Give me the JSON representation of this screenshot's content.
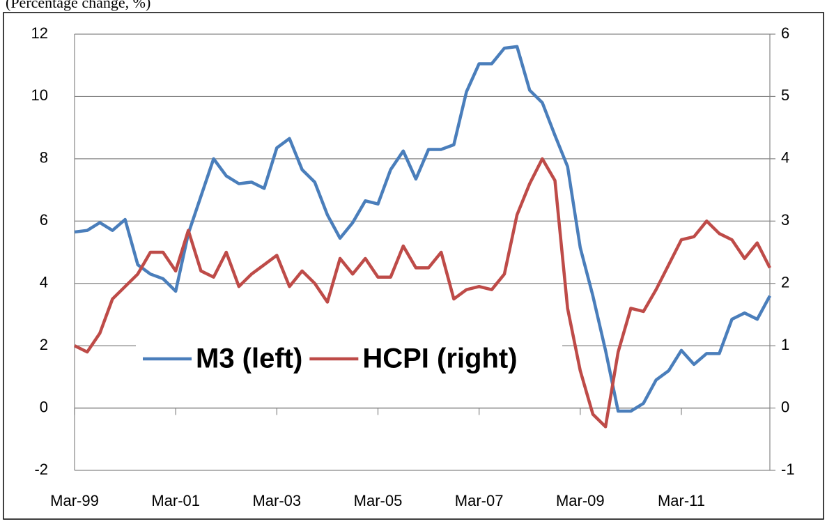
{
  "chart_data": {
    "type": "line",
    "title": "(Percentage change, %)",
    "categories": [
      "Mar-99",
      null,
      null,
      null,
      null,
      null,
      null,
      null,
      "Mar-01",
      null,
      null,
      null,
      null,
      null,
      null,
      null,
      "Mar-03",
      null,
      null,
      null,
      null,
      null,
      null,
      null,
      "Mar-05",
      null,
      null,
      null,
      null,
      null,
      null,
      null,
      "Mar-07",
      null,
      null,
      null,
      null,
      null,
      null,
      null,
      "Mar-09",
      null,
      null,
      null,
      null,
      null,
      null,
      null,
      "Mar-11",
      null,
      null,
      null,
      null,
      null,
      null,
      null
    ],
    "series": [
      {
        "name": "M3 (left)",
        "color": "#4a7ebb",
        "axis": "y",
        "values": [
          5.65,
          5.7,
          5.95,
          5.7,
          6.05,
          4.6,
          4.3,
          4.15,
          3.75,
          5.6,
          6.8,
          8.0,
          7.45,
          7.2,
          7.25,
          7.05,
          8.35,
          8.65,
          7.65,
          7.25,
          6.2,
          5.45,
          5.95,
          6.65,
          6.55,
          7.65,
          8.25,
          7.35,
          8.3,
          8.3,
          8.45,
          10.15,
          11.05,
          11.05,
          11.55,
          11.6,
          10.2,
          9.8,
          8.75,
          7.75,
          5.15,
          3.6,
          1.85,
          -0.1,
          -0.1,
          0.15,
          0.9,
          1.2,
          1.85,
          1.4,
          1.75,
          1.75,
          2.85,
          3.05,
          2.85,
          3.6
        ]
      },
      {
        "name": "HCPI (right)",
        "color": "#be4b48",
        "axis": "y2",
        "values": [
          1.0,
          0.9,
          1.2,
          1.75,
          1.95,
          2.15,
          2.5,
          2.5,
          2.2,
          2.85,
          2.2,
          2.1,
          2.5,
          1.95,
          2.15,
          2.3,
          2.45,
          1.95,
          2.2,
          2.0,
          1.7,
          2.4,
          2.15,
          2.4,
          2.1,
          2.1,
          2.6,
          2.25,
          2.25,
          2.5,
          1.75,
          1.9,
          1.95,
          1.9,
          2.15,
          3.1,
          3.6,
          4.0,
          3.65,
          1.6,
          0.6,
          -0.1,
          -0.3,
          0.9,
          1.6,
          1.55,
          1.9,
          2.3,
          2.7,
          2.75,
          3.0,
          2.8,
          2.7,
          2.4,
          2.65,
          2.25
        ]
      }
    ],
    "ylim": [
      -2,
      12
    ],
    "yticks": [
      -2,
      0,
      2,
      4,
      6,
      8,
      10,
      12
    ],
    "y2lim": [
      -1,
      6
    ],
    "y2ticks": [
      -1,
      0,
      1,
      2,
      3,
      4,
      5,
      6
    ],
    "grid": true,
    "legend": "center"
  }
}
